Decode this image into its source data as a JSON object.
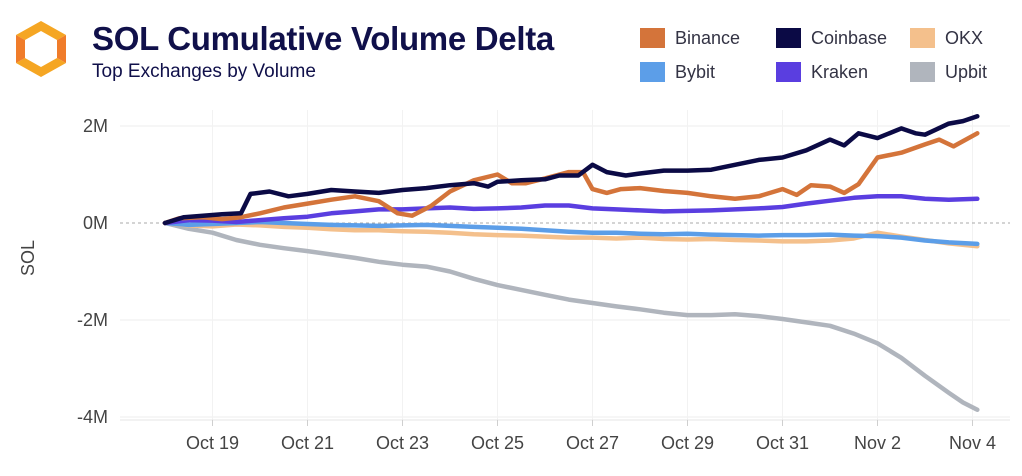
{
  "header": {
    "title": "SOL Cumulative Volume Delta",
    "subtitle": "Top Exchanges by Volume",
    "logo_colors": [
      "#f5a623",
      "#f07c2a"
    ]
  },
  "legend": [
    {
      "name": "Binance",
      "color": "#d4743a"
    },
    {
      "name": "Coinbase",
      "color": "#0b0a45"
    },
    {
      "name": "OKX",
      "color": "#f4c08c"
    },
    {
      "name": "Bybit",
      "color": "#5c9ee8"
    },
    {
      "name": "Kraken",
      "color": "#5a3ee0"
    },
    {
      "name": "Upbit",
      "color": "#b0b5bd"
    }
  ],
  "chart_data": {
    "type": "line",
    "title": "SOL Cumulative Volume Delta",
    "subtitle": "Top Exchanges by Volume",
    "xlabel": "",
    "ylabel": "SOL",
    "x_range": [
      17.2,
      35.5
    ],
    "ylim": [
      -4.2,
      2.4
    ],
    "x_ticks": [
      {
        "value": 19,
        "label": "Oct 19"
      },
      {
        "value": 21,
        "label": "Oct 21"
      },
      {
        "value": 23,
        "label": "Oct 23"
      },
      {
        "value": 25,
        "label": "Oct 25"
      },
      {
        "value": 27,
        "label": "Oct 27"
      },
      {
        "value": 29,
        "label": "Oct 29"
      },
      {
        "value": 31,
        "label": "Oct 31"
      },
      {
        "value": 33,
        "label": "Nov 2"
      },
      {
        "value": 35,
        "label": "Nov 4"
      }
    ],
    "y_ticks": [
      {
        "value": 2,
        "label": "2M"
      },
      {
        "value": 0,
        "label": "0M"
      },
      {
        "value": -2,
        "label": "-2M"
      },
      {
        "value": -4,
        "label": "-4M"
      }
    ],
    "unit": "M SOL",
    "series": [
      {
        "name": "Upbit",
        "color": "#b0b5bd",
        "points": [
          [
            18.0,
            0
          ],
          [
            18.5,
            -0.12
          ],
          [
            19.0,
            -0.2
          ],
          [
            19.5,
            -0.35
          ],
          [
            20.0,
            -0.45
          ],
          [
            20.5,
            -0.52
          ],
          [
            21.0,
            -0.58
          ],
          [
            21.5,
            -0.65
          ],
          [
            22.0,
            -0.72
          ],
          [
            22.5,
            -0.8
          ],
          [
            23.0,
            -0.86
          ],
          [
            23.5,
            -0.9
          ],
          [
            24.0,
            -1.0
          ],
          [
            24.5,
            -1.15
          ],
          [
            25.0,
            -1.28
          ],
          [
            25.5,
            -1.38
          ],
          [
            26.0,
            -1.48
          ],
          [
            26.5,
            -1.58
          ],
          [
            27.0,
            -1.65
          ],
          [
            27.5,
            -1.72
          ],
          [
            28.0,
            -1.78
          ],
          [
            28.5,
            -1.85
          ],
          [
            29.0,
            -1.9
          ],
          [
            29.5,
            -1.9
          ],
          [
            30.0,
            -1.88
          ],
          [
            30.5,
            -1.92
          ],
          [
            31.0,
            -1.98
          ],
          [
            31.5,
            -2.05
          ],
          [
            32.0,
            -2.12
          ],
          [
            32.5,
            -2.28
          ],
          [
            33.0,
            -2.48
          ],
          [
            33.5,
            -2.78
          ],
          [
            34.0,
            -3.15
          ],
          [
            34.5,
            -3.5
          ],
          [
            34.8,
            -3.7
          ],
          [
            35.1,
            -3.85
          ]
        ]
      },
      {
        "name": "OKX",
        "color": "#f4c08c",
        "points": [
          [
            18.0,
            0
          ],
          [
            18.5,
            -0.05
          ],
          [
            19.0,
            -0.07
          ],
          [
            19.5,
            -0.03
          ],
          [
            20.0,
            -0.05
          ],
          [
            20.5,
            -0.08
          ],
          [
            21.0,
            -0.1
          ],
          [
            21.5,
            -0.13
          ],
          [
            22.0,
            -0.15
          ],
          [
            22.5,
            -0.15
          ],
          [
            23.0,
            -0.17
          ],
          [
            23.5,
            -0.18
          ],
          [
            24.0,
            -0.2
          ],
          [
            24.5,
            -0.23
          ],
          [
            25.0,
            -0.25
          ],
          [
            25.5,
            -0.26
          ],
          [
            26.0,
            -0.28
          ],
          [
            26.5,
            -0.3
          ],
          [
            27.0,
            -0.3
          ],
          [
            27.5,
            -0.32
          ],
          [
            28.0,
            -0.3
          ],
          [
            28.5,
            -0.33
          ],
          [
            29.0,
            -0.34
          ],
          [
            29.5,
            -0.33
          ],
          [
            30.0,
            -0.35
          ],
          [
            30.5,
            -0.36
          ],
          [
            31.0,
            -0.38
          ],
          [
            31.5,
            -0.38
          ],
          [
            32.0,
            -0.36
          ],
          [
            32.5,
            -0.32
          ],
          [
            33.0,
            -0.2
          ],
          [
            33.5,
            -0.28
          ],
          [
            34.0,
            -0.35
          ],
          [
            34.5,
            -0.42
          ],
          [
            35.1,
            -0.48
          ]
        ]
      },
      {
        "name": "Bybit",
        "color": "#5c9ee8",
        "points": [
          [
            18.0,
            0
          ],
          [
            18.5,
            -0.04
          ],
          [
            19.0,
            -0.02
          ],
          [
            19.5,
            0.0
          ],
          [
            20.0,
            0.02
          ],
          [
            20.5,
            0.0
          ],
          [
            21.0,
            -0.02
          ],
          [
            21.5,
            -0.04
          ],
          [
            22.0,
            -0.05
          ],
          [
            22.5,
            -0.06
          ],
          [
            23.0,
            -0.05
          ],
          [
            23.5,
            -0.04
          ],
          [
            24.0,
            -0.06
          ],
          [
            24.5,
            -0.08
          ],
          [
            25.0,
            -0.1
          ],
          [
            25.5,
            -0.12
          ],
          [
            26.0,
            -0.15
          ],
          [
            26.5,
            -0.18
          ],
          [
            27.0,
            -0.2
          ],
          [
            27.5,
            -0.2
          ],
          [
            28.0,
            -0.22
          ],
          [
            28.5,
            -0.23
          ],
          [
            29.0,
            -0.22
          ],
          [
            29.5,
            -0.24
          ],
          [
            30.0,
            -0.25
          ],
          [
            30.5,
            -0.26
          ],
          [
            31.0,
            -0.25
          ],
          [
            31.5,
            -0.25
          ],
          [
            32.0,
            -0.24
          ],
          [
            32.5,
            -0.26
          ],
          [
            33.0,
            -0.27
          ],
          [
            33.5,
            -0.3
          ],
          [
            34.0,
            -0.36
          ],
          [
            34.5,
            -0.4
          ],
          [
            35.1,
            -0.43
          ]
        ]
      },
      {
        "name": "Kraken",
        "color": "#5a3ee0",
        "points": [
          [
            18.0,
            0
          ],
          [
            18.5,
            0.06
          ],
          [
            19.0,
            0.05
          ],
          [
            19.5,
            0.02
          ],
          [
            20.0,
            0.06
          ],
          [
            20.5,
            0.1
          ],
          [
            21.0,
            0.13
          ],
          [
            21.5,
            0.2
          ],
          [
            22.0,
            0.24
          ],
          [
            22.5,
            0.28
          ],
          [
            23.0,
            0.28
          ],
          [
            23.5,
            0.3
          ],
          [
            24.0,
            0.32
          ],
          [
            24.5,
            0.29
          ],
          [
            25.0,
            0.3
          ],
          [
            25.5,
            0.32
          ],
          [
            26.0,
            0.36
          ],
          [
            26.5,
            0.36
          ],
          [
            27.0,
            0.3
          ],
          [
            27.5,
            0.28
          ],
          [
            28.0,
            0.26
          ],
          [
            28.5,
            0.24
          ],
          [
            29.0,
            0.25
          ],
          [
            29.5,
            0.26
          ],
          [
            30.0,
            0.28
          ],
          [
            30.5,
            0.3
          ],
          [
            31.0,
            0.33
          ],
          [
            31.5,
            0.4
          ],
          [
            32.0,
            0.46
          ],
          [
            32.5,
            0.52
          ],
          [
            33.0,
            0.55
          ],
          [
            33.5,
            0.55
          ],
          [
            34.0,
            0.5
          ],
          [
            34.5,
            0.48
          ],
          [
            35.1,
            0.5
          ]
        ]
      },
      {
        "name": "Binance",
        "color": "#d4743a",
        "points": [
          [
            18.0,
            0
          ],
          [
            18.3,
            0.1
          ],
          [
            18.8,
            0.12
          ],
          [
            19.2,
            0.08
          ],
          [
            19.6,
            0.12
          ],
          [
            20.0,
            0.2
          ],
          [
            20.5,
            0.32
          ],
          [
            21.0,
            0.4
          ],
          [
            21.5,
            0.48
          ],
          [
            22.0,
            0.55
          ],
          [
            22.5,
            0.45
          ],
          [
            22.9,
            0.2
          ],
          [
            23.2,
            0.15
          ],
          [
            23.6,
            0.35
          ],
          [
            24.0,
            0.65
          ],
          [
            24.5,
            0.88
          ],
          [
            25.0,
            1.0
          ],
          [
            25.3,
            0.82
          ],
          [
            25.6,
            0.82
          ],
          [
            26.0,
            0.92
          ],
          [
            26.5,
            1.05
          ],
          [
            26.8,
            1.05
          ],
          [
            27.0,
            0.7
          ],
          [
            27.3,
            0.62
          ],
          [
            27.6,
            0.7
          ],
          [
            28.0,
            0.72
          ],
          [
            28.5,
            0.66
          ],
          [
            29.0,
            0.62
          ],
          [
            29.5,
            0.55
          ],
          [
            30.0,
            0.5
          ],
          [
            30.5,
            0.55
          ],
          [
            31.0,
            0.7
          ],
          [
            31.3,
            0.58
          ],
          [
            31.6,
            0.78
          ],
          [
            32.0,
            0.75
          ],
          [
            32.3,
            0.62
          ],
          [
            32.6,
            0.8
          ],
          [
            33.0,
            1.35
          ],
          [
            33.5,
            1.45
          ],
          [
            34.0,
            1.62
          ],
          [
            34.3,
            1.72
          ],
          [
            34.6,
            1.58
          ],
          [
            35.1,
            1.85
          ]
        ]
      },
      {
        "name": "Coinbase",
        "color": "#0b0a45",
        "points": [
          [
            18.0,
            0
          ],
          [
            18.4,
            0.12
          ],
          [
            18.8,
            0.15
          ],
          [
            19.2,
            0.18
          ],
          [
            19.6,
            0.2
          ],
          [
            19.8,
            0.6
          ],
          [
            20.2,
            0.65
          ],
          [
            20.6,
            0.55
          ],
          [
            21.0,
            0.6
          ],
          [
            21.5,
            0.68
          ],
          [
            22.0,
            0.65
          ],
          [
            22.5,
            0.62
          ],
          [
            23.0,
            0.68
          ],
          [
            23.5,
            0.72
          ],
          [
            24.0,
            0.78
          ],
          [
            24.5,
            0.82
          ],
          [
            24.8,
            0.75
          ],
          [
            25.0,
            0.85
          ],
          [
            25.5,
            0.88
          ],
          [
            26.0,
            0.9
          ],
          [
            26.3,
            0.98
          ],
          [
            26.7,
            0.98
          ],
          [
            27.0,
            1.2
          ],
          [
            27.3,
            1.05
          ],
          [
            27.7,
            0.98
          ],
          [
            28.0,
            1.02
          ],
          [
            28.5,
            1.08
          ],
          [
            29.0,
            1.08
          ],
          [
            29.5,
            1.1
          ],
          [
            30.0,
            1.2
          ],
          [
            30.5,
            1.3
          ],
          [
            31.0,
            1.35
          ],
          [
            31.5,
            1.5
          ],
          [
            32.0,
            1.72
          ],
          [
            32.3,
            1.6
          ],
          [
            32.6,
            1.85
          ],
          [
            33.0,
            1.75
          ],
          [
            33.5,
            1.95
          ],
          [
            33.8,
            1.85
          ],
          [
            34.0,
            1.82
          ],
          [
            34.5,
            2.05
          ],
          [
            34.8,
            2.1
          ],
          [
            35.1,
            2.2
          ]
        ]
      }
    ]
  }
}
